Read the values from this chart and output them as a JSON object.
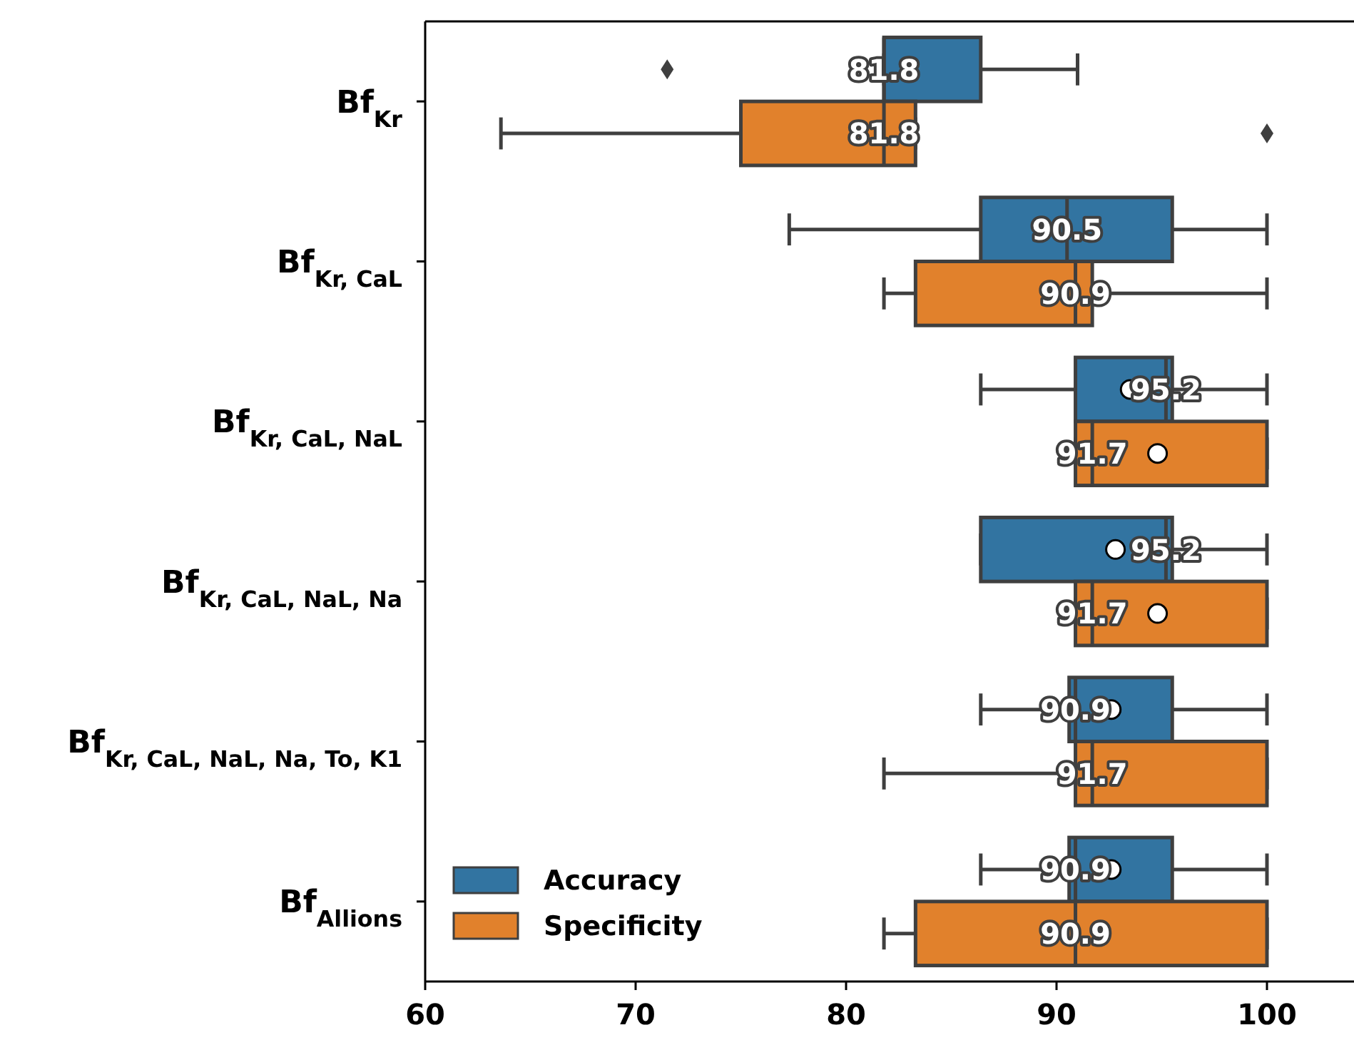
{
  "chart_data": {
    "type": "box",
    "orientation": "horizontal",
    "categories": [
      "Bf$_{Kr}$",
      "Bf$_{Kr, CaL}$",
      "Bf$_{Kr, CaL, NaL}$",
      "Bf$_{Kr, CaL, NaL, Na}$",
      "Bf$_{Kr, CaL, NaL, Na, To, K1}$",
      "Bf$_{Allions}$"
    ],
    "series": [
      {
        "name": "Accuracy",
        "color": "#3274a1",
        "value_labels": [
          "81.8",
          "90.5",
          "95.2",
          "95.2",
          "90.9",
          "90.9"
        ],
        "boxes": [
          {
            "low": 81.8,
            "q1": 81.8,
            "median": 81.8,
            "q3": 86.4,
            "high": 91.0,
            "outliers": [
              71.5
            ]
          },
          {
            "low": 77.3,
            "q1": 86.4,
            "median": 90.5,
            "q3": 95.5,
            "high": 100
          },
          {
            "low": 86.4,
            "q1": 90.9,
            "median": 95.2,
            "q3": 95.5,
            "high": 100,
            "mean": 93.5
          },
          {
            "low": 86.4,
            "q1": 86.4,
            "median": 95.2,
            "q3": 95.5,
            "high": 100,
            "mean": 92.8
          },
          {
            "low": 86.4,
            "q1": 90.6,
            "median": 90.9,
            "q3": 95.5,
            "high": 100,
            "mean": 92.6
          },
          {
            "low": 86.4,
            "q1": 90.6,
            "median": 90.9,
            "q3": 95.5,
            "high": 100,
            "mean": 92.6
          }
        ]
      },
      {
        "name": "Specificity",
        "color": "#e1812c",
        "value_labels": [
          "81.8",
          "90.9",
          "91.7",
          "91.7",
          "91.7",
          "90.9"
        ],
        "boxes": [
          {
            "low": 63.6,
            "q1": 75.0,
            "median": 81.8,
            "q3": 83.3,
            "high": 83.3,
            "outliers": [
              100
            ]
          },
          {
            "low": 81.8,
            "q1": 83.3,
            "median": 90.9,
            "q3": 91.7,
            "high": 100
          },
          {
            "low": 90.9,
            "q1": 90.9,
            "median": 91.7,
            "q3": 100,
            "high": 100,
            "mean": 94.8
          },
          {
            "low": 90.9,
            "q1": 90.9,
            "median": 91.7,
            "q3": 100,
            "high": 100,
            "mean": 94.8
          },
          {
            "low": 81.8,
            "q1": 90.9,
            "median": 91.7,
            "q3": 100,
            "high": 100
          },
          {
            "low": 81.8,
            "q1": 83.3,
            "median": 90.9,
            "q3": 100,
            "high": 100
          }
        ]
      }
    ],
    "xlim": [
      60,
      104
    ],
    "xticks": [
      60,
      70,
      80,
      90,
      100
    ],
    "legend": "bottom left"
  }
}
